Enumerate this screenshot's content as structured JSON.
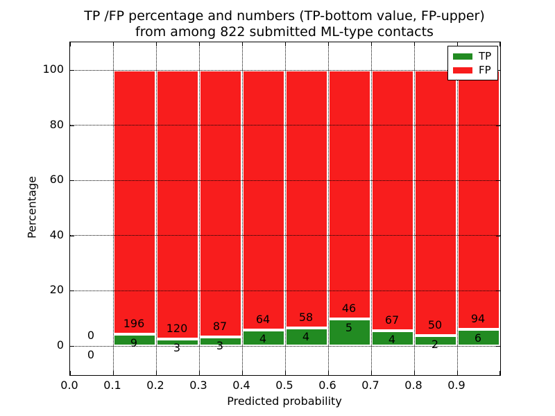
{
  "chart_data": {
    "type": "bar",
    "stacked": true,
    "normalized_to_percent": true,
    "title_line1": "TP /FP percentage and numbers (TP-bottom value, FP-upper)",
    "title_line2": "from among 822 submitted ML-type contacts",
    "xlabel": "Predicted probability",
    "ylabel": "Percentage",
    "total_submitted_contacts": 822,
    "x_tick_labels": [
      "0.0",
      "0.1",
      "0.2",
      "0.3",
      "0.4",
      "0.5",
      "0.6",
      "0.7",
      "0.8",
      "0.9"
    ],
    "y_tick_labels": [
      "0",
      "20",
      "40",
      "60",
      "80",
      "100"
    ],
    "y_ticks_pct": [
      0,
      20,
      40,
      60,
      80,
      100
    ],
    "xlim": [
      0.0,
      1.0
    ],
    "ylim_approx": [
      -10.5,
      110
    ],
    "grid": "dotted",
    "legend_position": "upper right",
    "categories": [
      "0.0-0.1",
      "0.1-0.2",
      "0.2-0.3",
      "0.3-0.4",
      "0.4-0.5",
      "0.5-0.6",
      "0.6-0.7",
      "0.7-0.8",
      "0.8-0.9",
      "0.9-1.0"
    ],
    "series": [
      {
        "name": "TP",
        "values": [
          0,
          9,
          3,
          3,
          4,
          4,
          5,
          4,
          2,
          6
        ]
      },
      {
        "name": "FP",
        "values": [
          0,
          196,
          120,
          87,
          64,
          58,
          46,
          67,
          50,
          94
        ]
      }
    ],
    "tp_percent_heights": [
      0,
      4.39,
      2.44,
      3.33,
      5.88,
      6.45,
      9.8,
      5.63,
      3.85,
      6.0
    ],
    "legend": [
      {
        "label": "TP",
        "color": "#228B22"
      },
      {
        "label": "FP",
        "color": "#F81D1D"
      }
    ],
    "colors": {
      "tp": "#228B22",
      "fp": "#F81D1D",
      "bar_edge": "#FFFFFF",
      "grid": "#000000",
      "background": "#FFFFFF",
      "text": "#000000"
    }
  }
}
